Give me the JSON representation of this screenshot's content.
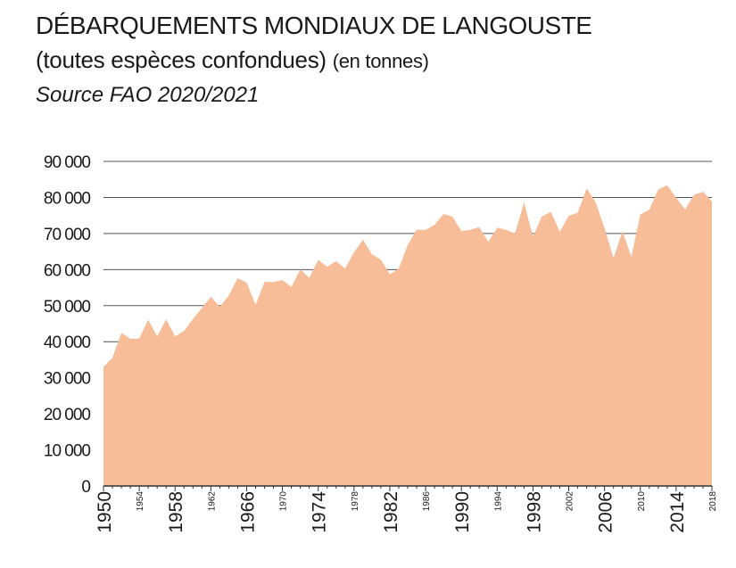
{
  "title": "DÉBARQUEMENTS MONDIAUX DE LANGOUSTE",
  "subtitle": "(toutes espèces confondues)",
  "unit": "(en tonnes)",
  "source": "Source FAO 2020/2021",
  "chart_data": {
    "type": "area",
    "xlabel": "",
    "ylabel": "",
    "xlim": [
      1950,
      2018
    ],
    "ylim": [
      0,
      90000
    ],
    "grid": "horizontal",
    "color": "#f7bd98",
    "y_ticks": [
      {
        "value": 0,
        "label": "0"
      },
      {
        "value": 10000,
        "label": "10 000"
      },
      {
        "value": 20000,
        "label": "20 000"
      },
      {
        "value": 30000,
        "label": "30 000"
      },
      {
        "value": 40000,
        "label": "40 000"
      },
      {
        "value": 50000,
        "label": "50 000"
      },
      {
        "value": 60000,
        "label": "60 000"
      },
      {
        "value": 70000,
        "label": "70 000"
      },
      {
        "value": 80000,
        "label": "80 000"
      },
      {
        "value": 90000,
        "label": "90 000"
      }
    ],
    "x_ticks_major": [
      {
        "value": 1950,
        "label": "1950"
      },
      {
        "value": 1958,
        "label": "1958"
      },
      {
        "value": 1966,
        "label": "1966"
      },
      {
        "value": 1974,
        "label": "1974"
      },
      {
        "value": 1982,
        "label": "1982"
      },
      {
        "value": 1990,
        "label": "1990"
      },
      {
        "value": 1998,
        "label": "1998"
      },
      {
        "value": 2006,
        "label": "2006"
      },
      {
        "value": 2014,
        "label": "2014"
      }
    ],
    "x_ticks_minor": [
      {
        "value": 1954,
        "label": "1954"
      },
      {
        "value": 1962,
        "label": "1962"
      },
      {
        "value": 1970,
        "label": "1970"
      },
      {
        "value": 1978,
        "label": "1978"
      },
      {
        "value": 1986,
        "label": "1986"
      },
      {
        "value": 1994,
        "label": "1994"
      },
      {
        "value": 2002,
        "label": "2002"
      },
      {
        "value": 2010,
        "label": "2010"
      },
      {
        "value": 2018,
        "label": "2018"
      }
    ],
    "series": [
      {
        "x": [
          1950,
          1951,
          1952,
          1953,
          1954,
          1955,
          1956,
          1957,
          1958,
          1959,
          1960,
          1961,
          1962,
          1963,
          1964,
          1965,
          1966,
          1967,
          1968,
          1969,
          1970,
          1971,
          1972,
          1973,
          1974,
          1975,
          1976,
          1977,
          1978,
          1979,
          1980,
          1981,
          1982,
          1983,
          1984,
          1985,
          1986,
          1987,
          1988,
          1989,
          1990,
          1991,
          1992,
          1993,
          1994,
          1995,
          1996,
          1997,
          1998,
          1999,
          2000,
          2001,
          2002,
          2003,
          2004,
          2005,
          2006,
          2007,
          2008,
          2009,
          2010,
          2011,
          2012,
          2013,
          2014,
          2015,
          2016,
          2017,
          2018
        ],
        "y": [
          33000,
          35500,
          42500,
          40800,
          40900,
          46100,
          41500,
          46200,
          41500,
          43000,
          46300,
          49400,
          52500,
          49700,
          52800,
          57600,
          56400,
          50200,
          56600,
          56600,
          57100,
          55200,
          60000,
          57700,
          62700,
          60800,
          62300,
          60300,
          64800,
          68300,
          64200,
          62800,
          58700,
          60300,
          66800,
          71000,
          71000,
          72400,
          75400,
          74700,
          70700,
          71000,
          71800,
          67700,
          71600,
          71000,
          70000,
          78700,
          69100,
          74700,
          76000,
          70500,
          74900,
          75800,
          82500,
          78700,
          71500,
          63200,
          70600,
          63600,
          75300,
          76600,
          82200,
          83400,
          79900,
          76700,
          80700,
          81600,
          78900
        ]
      }
    ]
  }
}
